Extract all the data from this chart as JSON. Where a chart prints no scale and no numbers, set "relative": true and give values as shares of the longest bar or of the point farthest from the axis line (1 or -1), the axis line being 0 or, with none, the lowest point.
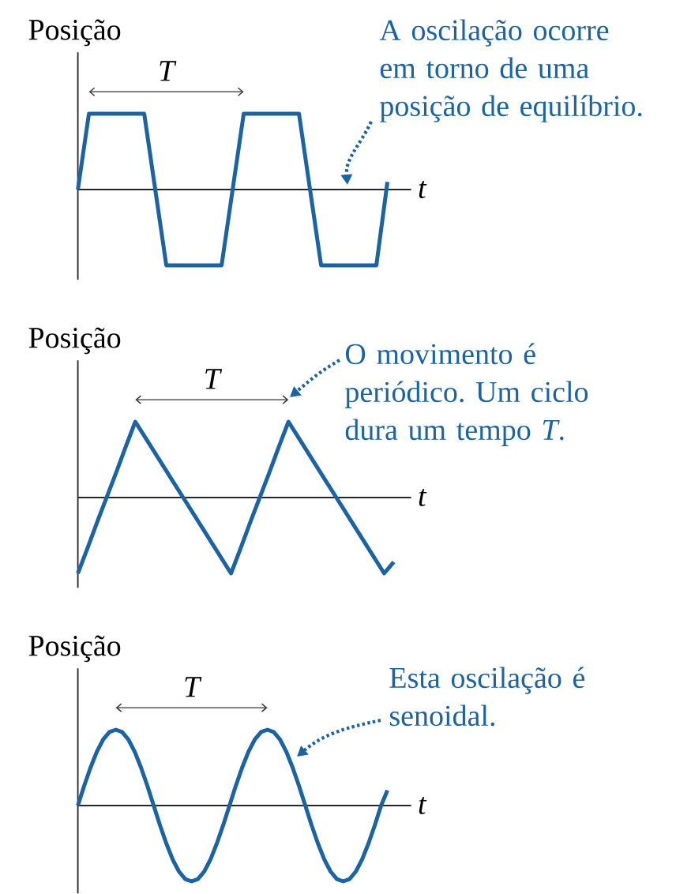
{
  "chart_data": [
    {
      "type": "line",
      "relative": true,
      "ylabel": "Posição",
      "xlabel": "t",
      "categories": [
        null,
        null,
        null,
        null,
        null,
        null,
        null,
        null,
        null,
        null,
        null,
        null,
        null,
        null,
        null,
        null,
        null,
        null,
        null,
        null,
        null,
        null,
        null,
        null,
        null,
        null,
        null,
        null,
        null
      ],
      "color": "#1b63a3",
      "values": [
        0,
        1,
        1,
        1,
        1,
        1,
        1,
        0,
        -1,
        -1,
        -1,
        -1,
        -1,
        -1,
        0,
        1,
        1,
        1,
        1,
        1,
        1,
        0,
        -1,
        -1,
        -1,
        -1,
        -1,
        -1,
        0.1
      ],
      "annotations": [
        "T",
        "A oscilação ocorre em torno de uma posição de equilíbrio."
      ]
    },
    {
      "type": "line",
      "relative": true,
      "ylabel": "Posição",
      "xlabel": "t",
      "categories": [
        null,
        null,
        null,
        null,
        null,
        null,
        null,
        null,
        null,
        null,
        null,
        null,
        null,
        null,
        null,
        null,
        null,
        null,
        null,
        null,
        null,
        null,
        null,
        null,
        null,
        null,
        null,
        null,
        null,
        null,
        null,
        null,
        null,
        null
      ],
      "color": "#1b63a3",
      "values": [
        -1,
        -0.67,
        -0.33,
        0,
        0.33,
        0.67,
        1,
        0.8,
        0.6,
        0.4,
        0.2,
        0,
        -0.2,
        -0.4,
        -0.6,
        -0.8,
        -1,
        -0.67,
        -0.33,
        0,
        0.33,
        0.67,
        1,
        0.8,
        0.6,
        0.4,
        0.2,
        0,
        -0.2,
        -0.4,
        -0.6,
        -0.8,
        -1,
        -0.85
      ],
      "annotations": [
        "T",
        "O movimento é periódico. Um ciclo dura um tempo *T*."
      ]
    },
    {
      "type": "line",
      "relative": true,
      "ylabel": "Posição",
      "xlabel": "t",
      "categories": [
        null,
        null,
        null,
        null,
        null,
        null,
        null,
        null,
        null,
        null,
        null,
        null,
        null,
        null,
        null,
        null,
        null,
        null,
        null,
        null,
        null,
        null,
        null,
        null,
        null,
        null,
        null,
        null,
        null,
        null,
        null,
        null,
        null,
        null,
        null,
        null,
        null,
        null,
        null,
        null,
        null,
        null,
        null,
        null,
        null,
        null,
        null,
        null,
        null,
        null
      ],
      "color": "#1b63a3",
      "values": [
        0,
        0.26,
        0.5,
        0.71,
        0.87,
        0.97,
        1,
        0.97,
        0.87,
        0.71,
        0.5,
        0.26,
        0,
        -0.26,
        -0.5,
        -0.71,
        -0.87,
        -0.97,
        -1,
        -0.97,
        -0.87,
        -0.71,
        -0.5,
        -0.26,
        0,
        0.26,
        0.5,
        0.71,
        0.87,
        0.97,
        1,
        0.97,
        0.87,
        0.71,
        0.5,
        0.26,
        0,
        -0.26,
        -0.5,
        -0.71,
        -0.87,
        -0.97,
        -1,
        -0.97,
        -0.87,
        -0.71,
        -0.5,
        -0.26,
        0,
        0.2
      ],
      "annotations": [
        "T",
        "Esta oscilação é senoidal."
      ]
    }
  ]
}
